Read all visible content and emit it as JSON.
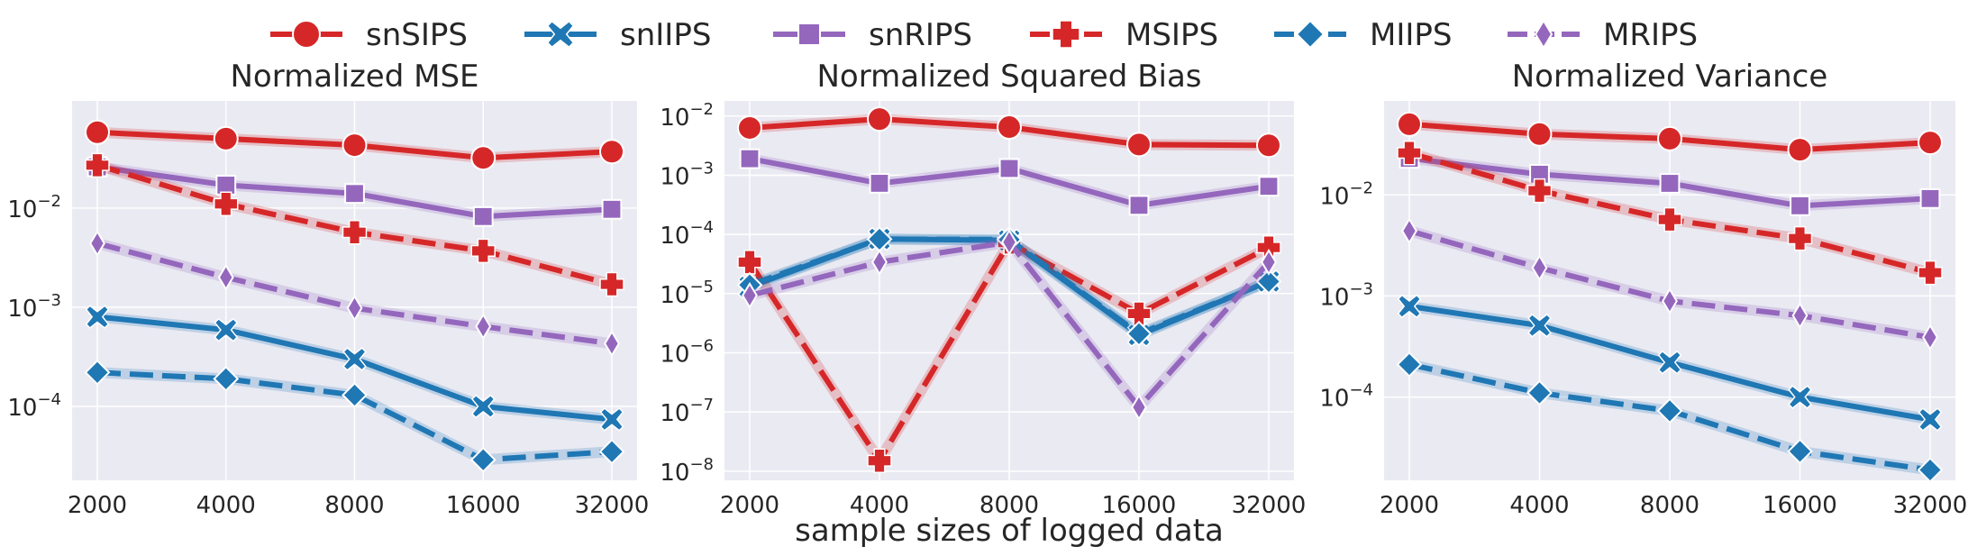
{
  "legend": [
    {
      "name": "snSIPS",
      "color": "#d62728",
      "marker": "circle",
      "dash": "solid"
    },
    {
      "name": "snIIPS",
      "color": "#1f77b4",
      "marker": "x",
      "dash": "solid"
    },
    {
      "name": "snRIPS",
      "color": "#9467bd",
      "marker": "square",
      "dash": "solid"
    },
    {
      "name": "MSIPS",
      "color": "#d62728",
      "marker": "plus",
      "dash": "dashed"
    },
    {
      "name": "MIIPS",
      "color": "#1f77b4",
      "marker": "diamond",
      "dash": "dashed"
    },
    {
      "name": "MRIPS",
      "color": "#9467bd",
      "marker": "thin-diamond",
      "dash": "dashed"
    }
  ],
  "xlabel": "sample sizes of logged data",
  "chart_data": [
    {
      "type": "line",
      "title": "Normalized MSE",
      "yscale": "log",
      "ylim": [
        1.8e-05,
        0.12
      ],
      "x": [
        2000,
        4000,
        8000,
        16000,
        32000
      ],
      "xticks": [
        "2000",
        "4000",
        "8000",
        "16000",
        "32000"
      ],
      "yticks": [
        {
          "value": 0.0001,
          "exp": "−4"
        },
        {
          "value": 0.001,
          "exp": "−3"
        },
        {
          "value": 0.01,
          "exp": "−2"
        }
      ],
      "grid": true,
      "series": [
        {
          "name": "snSIPS",
          "values": [
            0.058,
            0.05,
            0.043,
            0.032,
            0.037
          ]
        },
        {
          "name": "snIIPS",
          "values": [
            0.0008,
            0.00059,
            0.0003,
            0.0001,
            7.4e-05
          ]
        },
        {
          "name": "snRIPS",
          "values": [
            0.026,
            0.017,
            0.014,
            0.0082,
            0.0097
          ]
        },
        {
          "name": "MSIPS",
          "values": [
            0.027,
            0.011,
            0.0057,
            0.0037,
            0.0017
          ]
        },
        {
          "name": "MIIPS",
          "values": [
            0.00022,
            0.00019,
            0.00013,
            2.9e-05,
            3.5e-05
          ]
        },
        {
          "name": "MRIPS",
          "values": [
            0.0044,
            0.002,
            0.00098,
            0.00064,
            0.00043
          ]
        }
      ]
    },
    {
      "type": "line",
      "title": "Normalized Squared Bias",
      "yscale": "log",
      "ylim": [
        7e-09,
        0.018
      ],
      "x": [
        2000,
        4000,
        8000,
        16000,
        32000
      ],
      "xticks": [
        "2000",
        "4000",
        "8000",
        "16000",
        "32000"
      ],
      "yticks": [
        {
          "value": 1e-08,
          "exp": "−8"
        },
        {
          "value": 1e-07,
          "exp": "−7"
        },
        {
          "value": 1e-06,
          "exp": "−6"
        },
        {
          "value": 1e-05,
          "exp": "−5"
        },
        {
          "value": 0.0001,
          "exp": "−4"
        },
        {
          "value": 0.001,
          "exp": "−3"
        },
        {
          "value": 0.01,
          "exp": "−2"
        }
      ],
      "grid": true,
      "series": [
        {
          "name": "snSIPS",
          "values": [
            0.0063,
            0.0089,
            0.0065,
            0.0033,
            0.0032
          ]
        },
        {
          "name": "snIIPS",
          "values": [
            1.3e-05,
            8.4e-05,
            7.9e-05,
            2e-06,
            1.6e-05
          ]
        },
        {
          "name": "snRIPS",
          "values": [
            0.0019,
            0.00073,
            0.0013,
            0.00031,
            0.00065
          ]
        },
        {
          "name": "MSIPS",
          "values": [
            3.4e-05,
            1.5e-08,
            7.3e-05,
            4.6e-06,
            6e-05
          ]
        },
        {
          "name": "MIIPS",
          "values": [
            1.4e-05,
            8.3e-05,
            8.2e-05,
            2.1e-06,
            1.6e-05
          ]
        },
        {
          "name": "MRIPS",
          "values": [
            9.3e-06,
            3.4e-05,
            7.4e-05,
            1.2e-07,
            3.4e-05
          ]
        }
      ]
    },
    {
      "type": "line",
      "title": "Normalized Variance",
      "yscale": "log",
      "ylim": [
        1.5e-05,
        0.085
      ],
      "x": [
        2000,
        4000,
        8000,
        16000,
        32000
      ],
      "xticks": [
        "2000",
        "4000",
        "8000",
        "16000",
        "32000"
      ],
      "yticks": [
        {
          "value": 0.0001,
          "exp": "−4"
        },
        {
          "value": 0.001,
          "exp": "−3"
        },
        {
          "value": 0.01,
          "exp": "−2"
        }
      ],
      "grid": true,
      "series": [
        {
          "name": "snSIPS",
          "values": [
            0.05,
            0.04,
            0.036,
            0.028,
            0.033
          ]
        },
        {
          "name": "snIIPS",
          "values": [
            0.00079,
            0.00051,
            0.00022,
            0.0001,
            6e-05
          ]
        },
        {
          "name": "snRIPS",
          "values": [
            0.023,
            0.016,
            0.013,
            0.0078,
            0.0092
          ]
        },
        {
          "name": "MSIPS",
          "values": [
            0.026,
            0.011,
            0.0057,
            0.0037,
            0.0017
          ]
        },
        {
          "name": "MIIPS",
          "values": [
            0.00021,
            0.00011,
            7.3e-05,
            2.9e-05,
            1.9e-05
          ]
        },
        {
          "name": "MRIPS",
          "values": [
            0.0044,
            0.0019,
            0.00089,
            0.00064,
            0.00039
          ]
        }
      ]
    }
  ]
}
